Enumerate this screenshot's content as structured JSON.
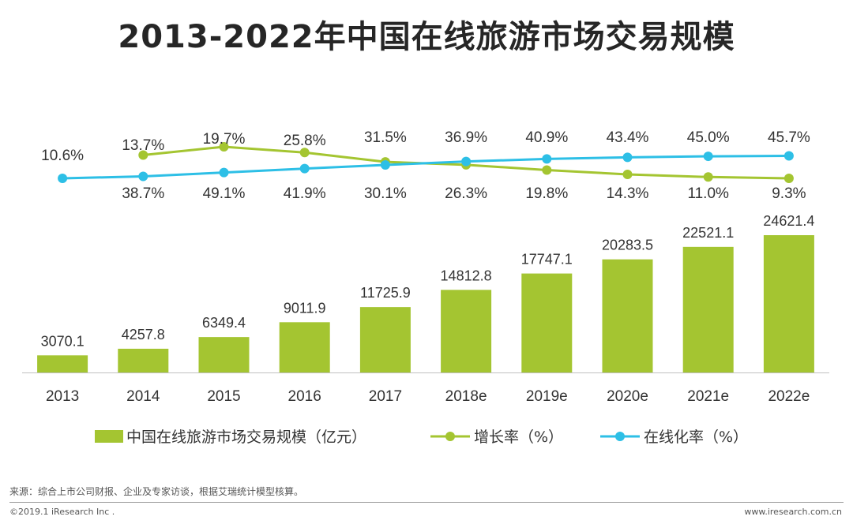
{
  "title": "2013-2022年中国在线旅游市场交易规模",
  "footer": {
    "source": "来源：综合上市公司财报、企业及专家访谈，根据艾瑞统计模型核算。",
    "copyright": "©2019.1 iResearch Inc .",
    "website": "www.iresearch.com.cn"
  },
  "colors": {
    "bar": "#a4c531",
    "growth_line": "#a4c531",
    "online_line": "#2dbfe6"
  },
  "chart_data": {
    "type": "bar",
    "categories": [
      "2013",
      "2014",
      "2015",
      "2016",
      "2017",
      "2018e",
      "2019e",
      "2020e",
      "2021e",
      "2022e"
    ],
    "series": [
      {
        "name": "中国在线旅游市场交易规模（亿元）",
        "type": "bar",
        "values": [
          3070.1,
          4257.8,
          6349.4,
          9011.9,
          11725.9,
          14812.8,
          17747.1,
          20283.5,
          22521.1,
          24621.4
        ],
        "labels": [
          "3070.1",
          "4257.8",
          "6349.4",
          "9011.9",
          "11725.9",
          "14812.8",
          "17747.1",
          "20283.5",
          "22521.1",
          "24621.4"
        ]
      },
      {
        "name": "增长率（%）",
        "type": "line",
        "values": [
          null,
          38.7,
          49.1,
          41.9,
          30.1,
          26.3,
          19.8,
          14.3,
          11.0,
          9.3
        ],
        "labels": [
          "",
          "38.7%",
          "49.1%",
          "41.9%",
          "30.1%",
          "26.3%",
          "19.8%",
          "14.3%",
          "11.0%",
          "9.3%"
        ]
      },
      {
        "name": "在线化率（%）",
        "type": "line",
        "values": [
          10.6,
          13.7,
          19.7,
          25.8,
          31.5,
          36.9,
          40.9,
          43.4,
          45.0,
          45.7
        ],
        "labels": [
          "10.6%",
          "13.7%",
          "19.7%",
          "25.8%",
          "31.5%",
          "36.9%",
          "40.9%",
          "43.4%",
          "45.0%",
          "45.7%"
        ]
      }
    ],
    "legend_position": "bottom",
    "grid": false
  }
}
